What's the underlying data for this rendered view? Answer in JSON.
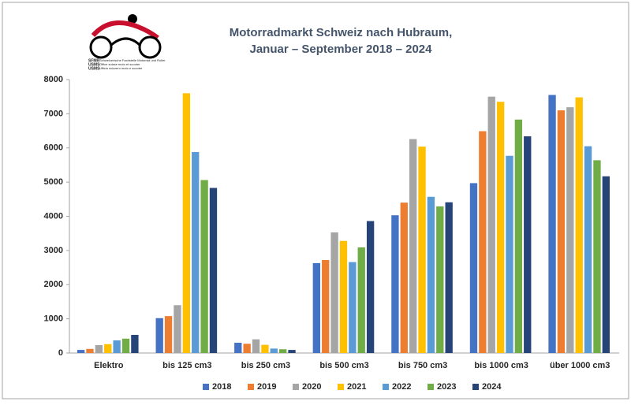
{
  "logo": {
    "lines": [
      "SFMR",
      "Schweizerische Fachstelle Motorrad und Roller",
      "USMS",
      "Office suisse moto et scooter",
      "USMS",
      "Ufficio svizzero moto e scooter"
    ]
  },
  "chart_data": {
    "type": "bar",
    "title": "Motorradmarkt Schweiz nach Hubraum,",
    "subtitle": "Januar – September 2018 – 2024",
    "categories": [
      "Elektro",
      "bis 125 cm3",
      "bis 250 cm3",
      "bis 500 cm3",
      "bis 750 cm3",
      "bis 1000 cm3",
      "über 1000 cm3"
    ],
    "series": [
      {
        "name": "2018",
        "color": "#4472c4",
        "values": [
          90,
          1020,
          300,
          2630,
          4030,
          4970,
          7550
        ]
      },
      {
        "name": "2019",
        "color": "#ed7d31",
        "values": [
          120,
          1080,
          270,
          2720,
          4400,
          6490,
          7100
        ]
      },
      {
        "name": "2020",
        "color": "#a5a5a5",
        "values": [
          230,
          1400,
          400,
          3530,
          6260,
          7500,
          7190
        ]
      },
      {
        "name": "2021",
        "color": "#ffc000",
        "values": [
          260,
          7600,
          240,
          3280,
          6040,
          7350,
          7480
        ]
      },
      {
        "name": "2022",
        "color": "#5b9bd5",
        "values": [
          370,
          5880,
          130,
          2660,
          4570,
          5770,
          6050
        ]
      },
      {
        "name": "2023",
        "color": "#70ad47",
        "values": [
          420,
          5060,
          110,
          3090,
          4290,
          6830,
          5640
        ]
      },
      {
        "name": "2024",
        "color": "#264478",
        "values": [
          530,
          4830,
          90,
          3860,
          4410,
          6340,
          5170
        ]
      }
    ],
    "ylim": [
      0,
      8000
    ],
    "yticks": [
      0,
      1000,
      2000,
      3000,
      4000,
      5000,
      6000,
      7000,
      8000
    ],
    "grid": false,
    "legend": "bottom"
  }
}
